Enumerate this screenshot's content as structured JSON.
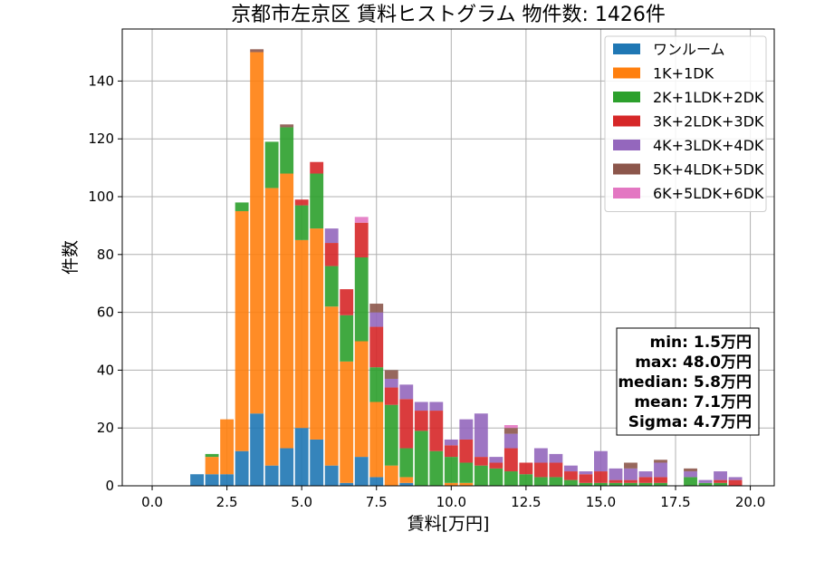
{
  "chart_data": {
    "type": "bar",
    "stacked": true,
    "title": "京都市左京区 賃料ヒストグラム 物件数: 1426件",
    "xlabel": "賃料[万円]",
    "ylabel": "件数",
    "xlim": [
      -1.0,
      20.8
    ],
    "ylim": [
      0,
      158
    ],
    "bin_width": 0.5,
    "xticks": [
      0.0,
      2.5,
      5.0,
      7.5,
      10.0,
      12.5,
      15.0,
      17.5,
      20.0
    ],
    "xtick_labels": [
      "0.0",
      "2.5",
      "5.0",
      "7.5",
      "10.0",
      "12.5",
      "15.0",
      "17.5",
      "20.0"
    ],
    "yticks": [
      0,
      20,
      40,
      60,
      80,
      100,
      120,
      140
    ],
    "ytick_labels": [
      "0",
      "20",
      "40",
      "60",
      "80",
      "100",
      "120",
      "140"
    ],
    "grid": true,
    "legend_position": "top-right",
    "x": [
      1.5,
      2.0,
      2.5,
      3.0,
      3.5,
      4.0,
      4.5,
      5.0,
      5.5,
      6.0,
      6.5,
      7.0,
      7.5,
      8.0,
      8.5,
      9.0,
      9.5,
      10.0,
      10.5,
      11.0,
      11.5,
      12.0,
      12.5,
      13.0,
      13.5,
      14.0,
      14.5,
      15.0,
      15.5,
      16.0,
      16.5,
      17.0,
      17.5,
      18.0,
      18.5,
      19.0,
      19.5
    ],
    "series": [
      {
        "name": "ワンルーム",
        "color": "#1f77b4",
        "values": [
          4,
          4,
          4,
          12,
          25,
          7,
          13,
          20,
          16,
          7,
          1,
          10,
          3,
          0,
          1,
          0,
          0,
          0,
          0,
          0,
          0,
          0,
          0,
          0,
          0,
          0,
          0,
          0,
          0,
          0,
          0,
          0,
          0,
          0,
          0,
          0,
          0
        ]
      },
      {
        "name": "1K+1DK",
        "color": "#ff7f0e",
        "values": [
          0,
          6,
          19,
          83,
          125,
          96,
          95,
          65,
          73,
          55,
          42,
          40,
          26,
          7,
          2,
          0,
          0,
          1,
          1,
          0,
          0,
          0,
          0,
          0,
          0,
          0,
          0,
          0,
          0,
          0,
          0,
          0,
          0,
          0,
          0,
          0,
          0
        ]
      },
      {
        "name": "2K+1LDK+2DK",
        "color": "#2ca02c",
        "values": [
          0,
          1,
          0,
          3,
          0,
          16,
          16,
          12,
          19,
          14,
          16,
          29,
          12,
          21,
          10,
          19,
          12,
          9,
          7,
          7,
          6,
          5,
          4,
          3,
          3,
          2,
          1,
          1,
          1,
          1,
          1,
          1,
          0,
          3,
          1,
          1,
          0
        ]
      },
      {
        "name": "3K+2LDK+3DK",
        "color": "#d62728",
        "values": [
          0,
          0,
          0,
          0,
          0,
          0,
          0,
          2,
          4,
          8,
          9,
          12,
          14,
          6,
          17,
          7,
          14,
          4,
          8,
          3,
          2,
          8,
          4,
          5,
          5,
          3,
          3,
          4,
          1,
          1,
          2,
          2,
          0,
          0,
          0,
          1,
          2
        ]
      },
      {
        "name": "4K+3LDK+4DK",
        "color": "#9467bd",
        "values": [
          0,
          0,
          0,
          0,
          0,
          0,
          0,
          0,
          0,
          5,
          0,
          0,
          5,
          3,
          5,
          3,
          3,
          2,
          7,
          15,
          2,
          5,
          0,
          5,
          3,
          2,
          1,
          7,
          4,
          4,
          2,
          5,
          0,
          2,
          1,
          3,
          1
        ]
      },
      {
        "name": "5K+4LDK+5DK",
        "color": "#8c564b",
        "values": [
          0,
          0,
          0,
          0,
          1,
          0,
          1,
          0,
          0,
          0,
          0,
          0,
          3,
          3,
          0,
          0,
          0,
          0,
          0,
          0,
          0,
          2,
          0,
          0,
          0,
          0,
          0,
          0,
          0,
          2,
          0,
          1,
          0,
          1,
          0,
          0,
          0
        ]
      },
      {
        "name": "6K+5LDK+6DK",
        "color": "#e377c2",
        "values": [
          0,
          0,
          0,
          0,
          0,
          0,
          0,
          0,
          0,
          0,
          0,
          2,
          0,
          0,
          0,
          0,
          0,
          0,
          0,
          0,
          0,
          1,
          0,
          0,
          0,
          0,
          0,
          0,
          0,
          0,
          0,
          0,
          0,
          0,
          0,
          0,
          0
        ]
      }
    ],
    "stats_box": {
      "lines": [
        "min: 1.5万円",
        "max: 48.0万円",
        "median: 5.8万円",
        "mean: 7.1万円",
        "Sigma: 4.7万円"
      ],
      "position": "right"
    }
  }
}
